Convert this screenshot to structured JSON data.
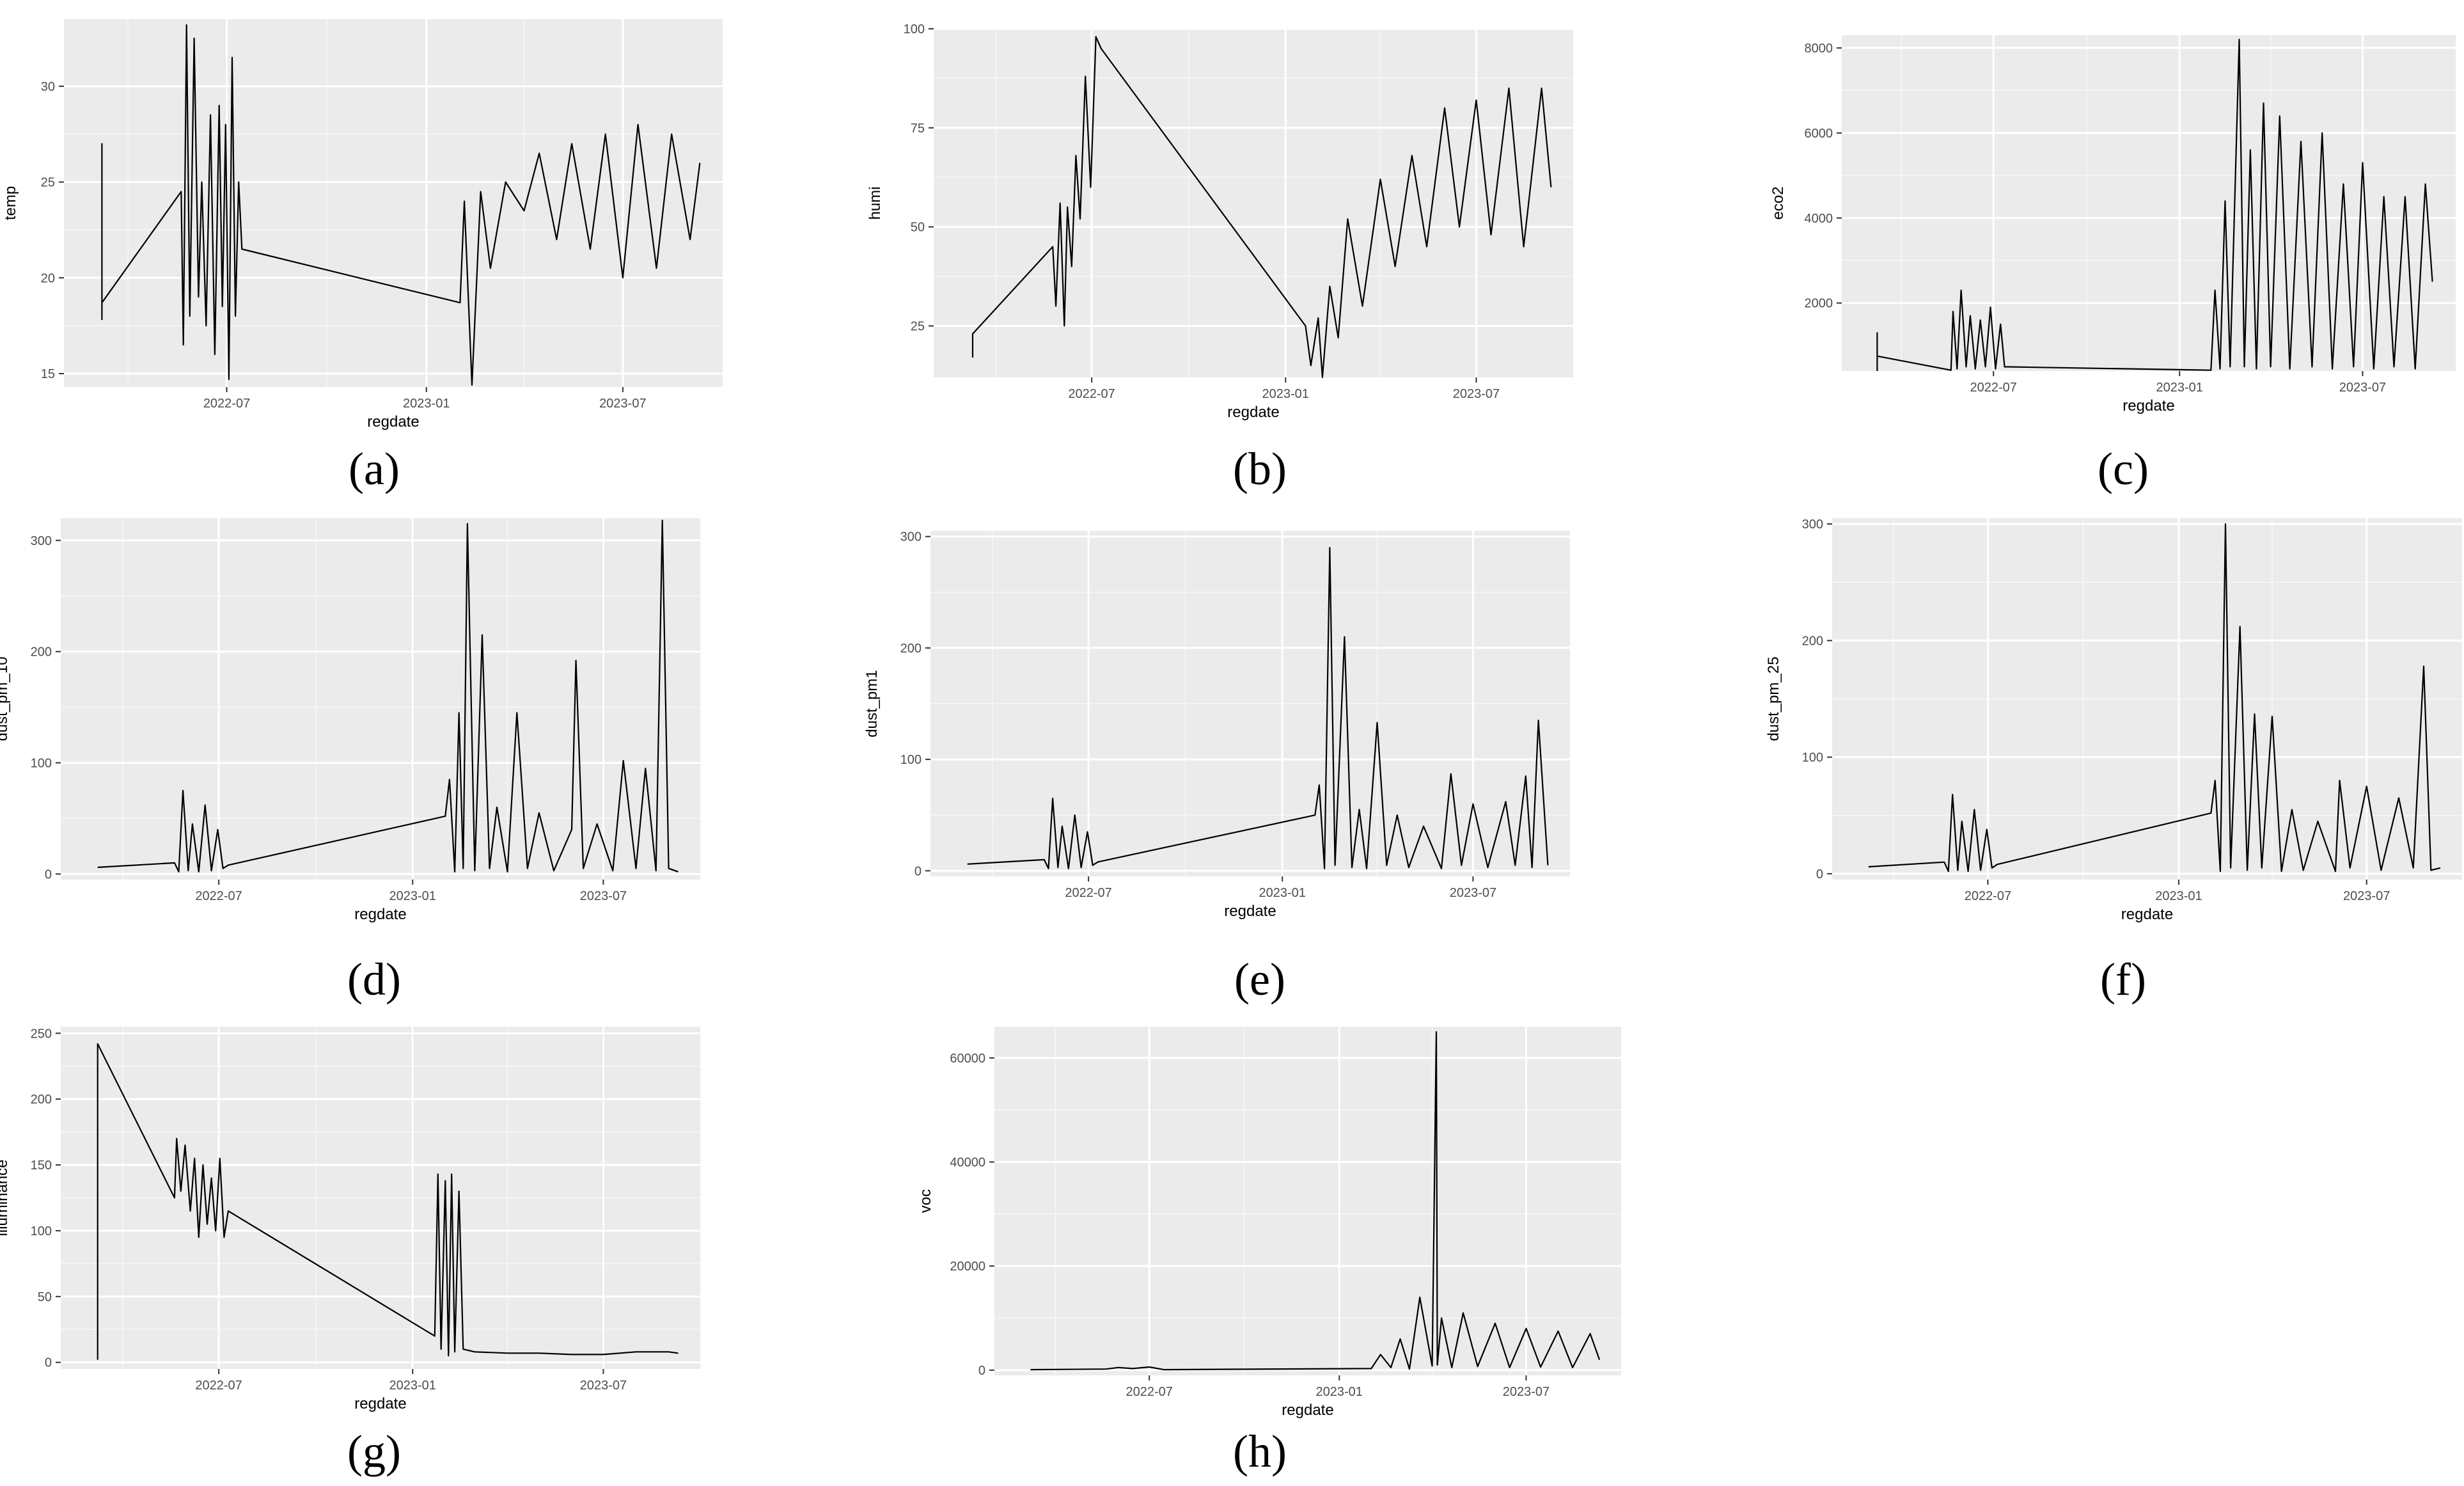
{
  "chart_data": [
    {
      "type": "line",
      "caption": "(a)",
      "xlabel": "regdate",
      "ylabel": "temp",
      "x_ticks": [
        "2022-07",
        "2023-01",
        "2023-07"
      ],
      "y_ticks": [
        15,
        20,
        25,
        30
      ],
      "ylim": [
        14.3,
        33.5
      ],
      "grid": true,
      "series": [
        {
          "x": [
            "2022-03-08",
            "2022-03-08",
            "2022-03-08",
            "2022-05-20",
            "2022-05-22",
            "2022-05-25",
            "2022-05-28",
            "2022-06-01",
            "2022-06-05",
            "2022-06-08",
            "2022-06-12",
            "2022-06-16",
            "2022-06-20",
            "2022-06-24",
            "2022-06-27",
            "2022-06-30",
            "2022-07-03",
            "2022-07-06",
            "2022-07-09",
            "2022-07-12",
            "2022-07-15",
            "2023-02-01",
            "2023-02-05",
            "2023-02-12",
            "2023-02-20",
            "2023-03-01",
            "2023-03-15",
            "2023-04-01",
            "2023-04-15",
            "2023-05-01",
            "2023-05-15",
            "2023-06-01",
            "2023-06-15",
            "2023-07-01",
            "2023-07-15",
            "2023-08-01",
            "2023-08-15",
            "2023-09-01",
            "2023-09-10"
          ],
          "y": [
            17.8,
            27.0,
            18.7,
            24.5,
            16.5,
            33.2,
            18.0,
            32.5,
            19.0,
            25.0,
            17.5,
            28.5,
            16.0,
            29.0,
            18.5,
            28.0,
            14.7,
            31.5,
            18.0,
            25.0,
            21.5,
            18.7,
            24.0,
            14.4,
            24.5,
            20.5,
            25.0,
            23.5,
            26.5,
            22.0,
            27.0,
            21.5,
            27.5,
            20.0,
            28.0,
            20.5,
            27.5,
            22.0,
            26.0
          ]
        }
      ]
    },
    {
      "type": "line",
      "caption": "(b)",
      "xlabel": "regdate",
      "ylabel": "humi",
      "x_ticks": [
        "2022-07",
        "2023-01",
        "2023-07"
      ],
      "y_ticks": [
        25,
        50,
        75,
        100
      ],
      "ylim": [
        12,
        100
      ],
      "grid": true,
      "series": [
        {
          "x": [
            "2022-03-10",
            "2022-03-10",
            "2022-05-25",
            "2022-05-28",
            "2022-06-01",
            "2022-06-05",
            "2022-06-08",
            "2022-06-12",
            "2022-06-16",
            "2022-06-20",
            "2022-06-25",
            "2022-06-30",
            "2022-07-05",
            "2022-07-10",
            "2023-01-20",
            "2023-01-25",
            "2023-02-01",
            "2023-02-05",
            "2023-02-12",
            "2023-02-20",
            "2023-03-01",
            "2023-03-15",
            "2023-04-01",
            "2023-04-15",
            "2023-05-01",
            "2023-05-15",
            "2023-06-01",
            "2023-06-15",
            "2023-07-01",
            "2023-07-15",
            "2023-08-01",
            "2023-08-15",
            "2023-09-01",
            "2023-09-10"
          ],
          "y": [
            17,
            23,
            45,
            30,
            56,
            25,
            55,
            40,
            68,
            52,
            88,
            60,
            98,
            95,
            25,
            15,
            27,
            12,
            35,
            22,
            52,
            30,
            62,
            40,
            68,
            45,
            80,
            50,
            82,
            48,
            85,
            45,
            85,
            60
          ]
        }
      ]
    },
    {
      "type": "line",
      "caption": "(c)",
      "xlabel": "regdate",
      "ylabel": "eco2",
      "x_ticks": [
        "2022-07",
        "2023-01",
        "2023-07"
      ],
      "y_ticks": [
        2000,
        4000,
        6000,
        8000
      ],
      "ylim": [
        400,
        8300
      ],
      "grid": true,
      "series": [
        {
          "x": [
            "2022-03-08",
            "2022-03-08",
            "2022-03-08",
            "2022-05-20",
            "2022-05-22",
            "2022-05-26",
            "2022-05-30",
            "2022-06-04",
            "2022-06-08",
            "2022-06-13",
            "2022-06-18",
            "2022-06-23",
            "2022-06-28",
            "2022-07-03",
            "2022-07-08",
            "2022-07-12",
            "2023-02-01",
            "2023-02-05",
            "2023-02-10",
            "2023-02-15",
            "2023-02-20",
            "2023-03-01",
            "2023-03-06",
            "2023-03-12",
            "2023-03-18",
            "2023-03-25",
            "2023-04-01",
            "2023-04-10",
            "2023-04-20",
            "2023-05-01",
            "2023-05-12",
            "2023-05-22",
            "2023-06-01",
            "2023-06-12",
            "2023-06-22",
            "2023-07-01",
            "2023-07-12",
            "2023-07-22",
            "2023-08-01",
            "2023-08-12",
            "2023-08-22",
            "2023-09-01",
            "2023-09-08"
          ],
          "y": [
            400,
            1300,
            750,
            420,
            1800,
            450,
            2300,
            500,
            1700,
            450,
            1600,
            500,
            1900,
            450,
            1500,
            500,
            420,
            2300,
            450,
            4400,
            500,
            8200,
            500,
            5600,
            450,
            6700,
            500,
            6400,
            450,
            5800,
            500,
            6000,
            450,
            4800,
            500,
            5300,
            450,
            4500,
            500,
            4500,
            450,
            4800,
            2500
          ]
        }
      ]
    },
    {
      "type": "line",
      "caption": "(d)",
      "xlabel": "regdate",
      "ylabel": "dust_pm_10",
      "x_ticks": [
        "2022-07",
        "2023-01",
        "2023-07"
      ],
      "y_ticks": [
        0,
        100,
        200,
        300
      ],
      "ylim": [
        -5,
        320
      ],
      "grid": true,
      "series": [
        {
          "x": [
            "2022-03-08",
            "2022-05-20",
            "2022-05-24",
            "2022-05-28",
            "2022-06-02",
            "2022-06-06",
            "2022-06-12",
            "2022-06-18",
            "2022-06-24",
            "2022-06-30",
            "2022-07-05",
            "2022-07-10",
            "2023-02-01",
            "2023-02-05",
            "2023-02-10",
            "2023-02-14",
            "2023-02-18",
            "2023-02-22",
            "2023-03-01",
            "2023-03-08",
            "2023-03-15",
            "2023-03-22",
            "2023-04-01",
            "2023-04-10",
            "2023-04-20",
            "2023-05-01",
            "2023-05-15",
            "2023-06-01",
            "2023-06-05",
            "2023-06-12",
            "2023-06-25",
            "2023-07-10",
            "2023-07-20",
            "2023-08-01",
            "2023-08-10",
            "2023-08-20",
            "2023-08-26",
            "2023-09-01",
            "2023-09-10"
          ],
          "y": [
            6,
            10,
            2,
            75,
            3,
            45,
            2,
            62,
            3,
            40,
            5,
            8,
            52,
            85,
            2,
            145,
            5,
            315,
            3,
            215,
            5,
            60,
            2,
            145,
            5,
            55,
            3,
            40,
            192,
            5,
            45,
            3,
            102,
            5,
            95,
            3,
            318,
            5,
            2
          ]
        }
      ]
    },
    {
      "type": "line",
      "caption": "(e)",
      "xlabel": "regdate",
      "ylabel": "dust_pm1",
      "x_ticks": [
        "2022-07",
        "2023-01",
        "2023-07"
      ],
      "y_ticks": [
        0,
        100,
        200,
        300
      ],
      "ylim": [
        -5,
        305
      ],
      "grid": true,
      "series": [
        {
          "x": [
            "2022-03-08",
            "2022-05-20",
            "2022-05-24",
            "2022-05-28",
            "2022-06-02",
            "2022-06-06",
            "2022-06-12",
            "2022-06-18",
            "2022-06-24",
            "2022-06-30",
            "2022-07-05",
            "2022-07-10",
            "2023-02-01",
            "2023-02-05",
            "2023-02-10",
            "2023-02-15",
            "2023-02-20",
            "2023-03-01",
            "2023-03-08",
            "2023-03-15",
            "2023-03-22",
            "2023-04-01",
            "2023-04-10",
            "2023-04-20",
            "2023-05-01",
            "2023-05-15",
            "2023-06-01",
            "2023-06-10",
            "2023-06-20",
            "2023-07-01",
            "2023-07-15",
            "2023-08-01",
            "2023-08-10",
            "2023-08-20",
            "2023-08-26",
            "2023-09-01",
            "2023-09-10"
          ],
          "y": [
            6,
            10,
            2,
            65,
            3,
            40,
            2,
            50,
            3,
            35,
            5,
            8,
            50,
            77,
            2,
            290,
            5,
            210,
            3,
            55,
            2,
            133,
            5,
            50,
            3,
            40,
            2,
            87,
            5,
            60,
            3,
            62,
            5,
            85,
            3,
            135,
            5
          ]
        }
      ]
    },
    {
      "type": "line",
      "caption": "(f)",
      "xlabel": "regdate",
      "ylabel": "dust_pm_25",
      "x_ticks": [
        "2022-07",
        "2023-01",
        "2023-07"
      ],
      "y_ticks": [
        0,
        100,
        200,
        300
      ],
      "ylim": [
        -5,
        305
      ],
      "grid": true,
      "series": [
        {
          "x": [
            "2022-03-08",
            "2022-05-20",
            "2022-05-24",
            "2022-05-28",
            "2022-06-02",
            "2022-06-06",
            "2022-06-12",
            "2022-06-18",
            "2022-06-24",
            "2022-06-30",
            "2022-07-05",
            "2022-07-10",
            "2023-02-01",
            "2023-02-05",
            "2023-02-10",
            "2023-02-15",
            "2023-02-20",
            "2023-03-01",
            "2023-03-08",
            "2023-03-15",
            "2023-03-22",
            "2023-04-01",
            "2023-04-10",
            "2023-04-20",
            "2023-05-01",
            "2023-05-15",
            "2023-06-01",
            "2023-06-05",
            "2023-06-15",
            "2023-07-01",
            "2023-07-15",
            "2023-08-01",
            "2023-08-15",
            "2023-08-25",
            "2023-09-01",
            "2023-09-10"
          ],
          "y": [
            6,
            10,
            2,
            68,
            3,
            45,
            2,
            55,
            3,
            38,
            5,
            8,
            52,
            80,
            2,
            300,
            5,
            212,
            3,
            137,
            5,
            135,
            2,
            55,
            3,
            45,
            2,
            80,
            5,
            75,
            3,
            65,
            5,
            178,
            3,
            5
          ]
        }
      ]
    },
    {
      "type": "line",
      "caption": "(g)",
      "xlabel": "regdate",
      "ylabel": "illuminance",
      "x_ticks": [
        "2022-07",
        "2023-01",
        "2023-07"
      ],
      "y_ticks": [
        0,
        50,
        100,
        150,
        200,
        250
      ],
      "ylim": [
        -5,
        255
      ],
      "grid": true,
      "series": [
        {
          "x": [
            "2022-03-08",
            "2022-03-08",
            "2022-05-20",
            "2022-05-22",
            "2022-05-26",
            "2022-05-30",
            "2022-06-04",
            "2022-06-08",
            "2022-06-12",
            "2022-06-16",
            "2022-06-20",
            "2022-06-24",
            "2022-06-28",
            "2022-07-02",
            "2022-07-06",
            "2022-07-10",
            "2023-01-22",
            "2023-01-25",
            "2023-01-28",
            "2023-02-01",
            "2023-02-04",
            "2023-02-07",
            "2023-02-10",
            "2023-02-14",
            "2023-02-18",
            "2023-03-01",
            "2023-04-01",
            "2023-05-01",
            "2023-06-01",
            "2023-07-01",
            "2023-08-01",
            "2023-09-01",
            "2023-09-10"
          ],
          "y": [
            2,
            242,
            125,
            170,
            130,
            165,
            115,
            155,
            95,
            150,
            105,
            140,
            100,
            155,
            95,
            115,
            20,
            143,
            10,
            138,
            5,
            143,
            8,
            130,
            10,
            8,
            7,
            7,
            6,
            6,
            8,
            8,
            7
          ]
        }
      ]
    },
    {
      "type": "line",
      "caption": "(h)",
      "xlabel": "regdate",
      "ylabel": "voc",
      "x_ticks": [
        "2022-07",
        "2023-01",
        "2023-07"
      ],
      "y_ticks": [
        0,
        20000,
        40000,
        60000
      ],
      "ylim": [
        -1000,
        66000
      ],
      "grid": true,
      "series": [
        {
          "x": [
            "2022-03-08",
            "2022-05-20",
            "2022-06-01",
            "2022-06-15",
            "2022-07-01",
            "2022-07-15",
            "2023-02-01",
            "2023-02-10",
            "2023-02-20",
            "2023-03-01",
            "2023-03-10",
            "2023-03-20",
            "2023-04-01",
            "2023-04-05",
            "2023-04-06",
            "2023-04-10",
            "2023-04-20",
            "2023-05-01",
            "2023-05-15",
            "2023-06-01",
            "2023-06-15",
            "2023-07-01",
            "2023-07-15",
            "2023-08-01",
            "2023-08-15",
            "2023-09-01",
            "2023-09-10"
          ],
          "y": [
            100,
            200,
            500,
            300,
            600,
            100,
            300,
            3000,
            500,
            6000,
            200,
            14000,
            800,
            65000,
            1000,
            10000,
            500,
            11000,
            700,
            9000,
            500,
            8000,
            600,
            7500,
            500,
            7000,
            2000
          ]
        }
      ]
    }
  ]
}
